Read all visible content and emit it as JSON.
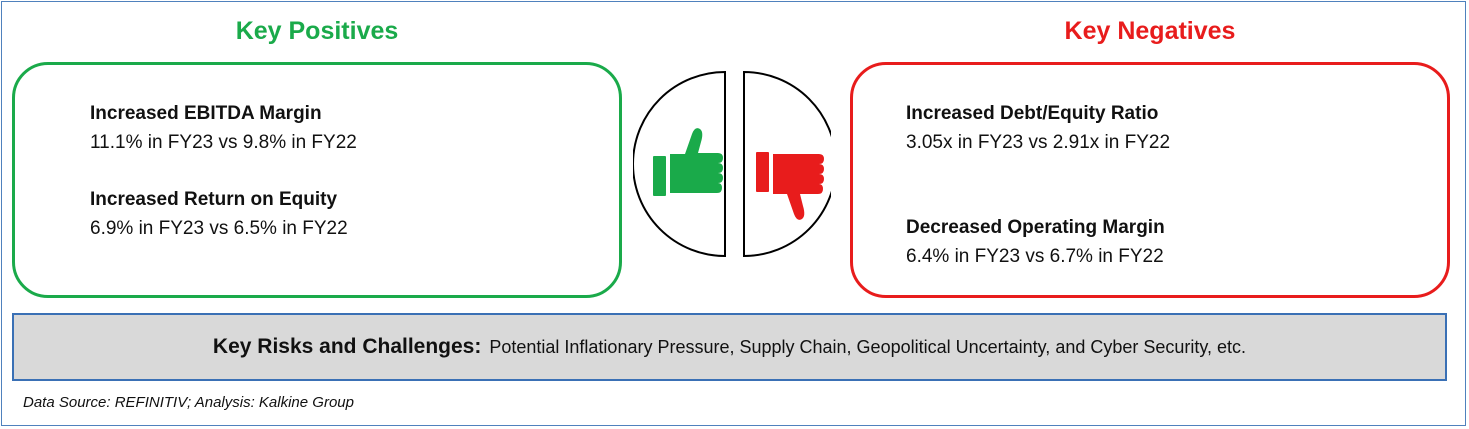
{
  "positives": {
    "heading": "Key Positives",
    "items": [
      {
        "title": "Increased EBITDA Margin",
        "text": "11.1% in FY23 vs 9.8% in FY22"
      },
      {
        "title": "Increased Return on Equity",
        "text": "6.9% in FY23 vs 6.5% in FY22"
      }
    ]
  },
  "negatives": {
    "heading": "Key Negatives",
    "items": [
      {
        "title": "Increased Debt/Equity Ratio",
        "text": "3.05x in FY23 vs 2.91x in FY22"
      },
      {
        "title": "Decreased Operating Margin",
        "text": "6.4% in FY23 vs 6.7% in FY22"
      }
    ]
  },
  "icons": {
    "left": "thumbs-up-icon",
    "right": "thumbs-down-icon"
  },
  "risks": {
    "label": "Key Risks and Challenges:",
    "text": "Potential Inflationary Pressure, Supply Chain, Geopolitical Uncertainty, and Cyber Security, etc."
  },
  "source": "Data Source: REFINITIV; Analysis: Kalkine Group",
  "colors": {
    "positive": "#1aaa4a",
    "negative": "#e81c1c",
    "risk_border": "#3a70b5",
    "risk_fill": "#d9d9d9"
  }
}
